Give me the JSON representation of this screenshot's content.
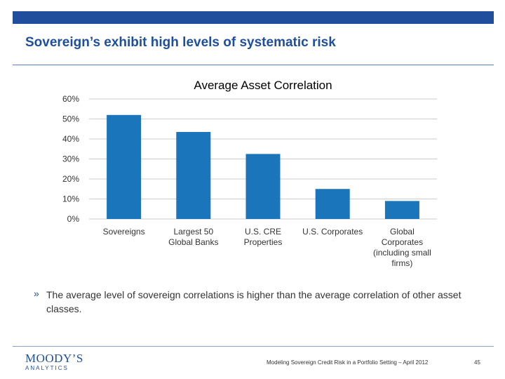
{
  "slide": {
    "title": "Sovereign’s exhibit high levels of systematic risk",
    "bullet_mark": "»",
    "bullet": "The average level of sovereign correlations is higher than the average correlation of other asset classes.",
    "footer": "Modeling Sovereign Credit Risk in a Portfolio Setting – April 2012",
    "page_number": "45",
    "logo_name": "MOODY’S",
    "logo_sub": "ANALYTICS"
  },
  "colors": {
    "brand": "#1f4e9c",
    "bar": "#1b75bb",
    "grid": "#cccccc"
  },
  "chart_data": {
    "type": "bar",
    "title": "Average Asset Correlation",
    "categories": [
      [
        "Sovereigns"
      ],
      [
        "Largest 50",
        "Global Banks"
      ],
      [
        "U.S. CRE",
        "Properties"
      ],
      [
        "U.S. Corporates"
      ],
      [
        "Global",
        "Corporates",
        "(including small",
        "firms)"
      ]
    ],
    "values": [
      0.52,
      0.435,
      0.325,
      0.15,
      0.09
    ],
    "ylim": [
      0,
      0.6
    ],
    "yticks": [
      "0%",
      "10%",
      "20%",
      "30%",
      "40%",
      "50%",
      "60%"
    ],
    "grid": true,
    "legend": "none"
  }
}
